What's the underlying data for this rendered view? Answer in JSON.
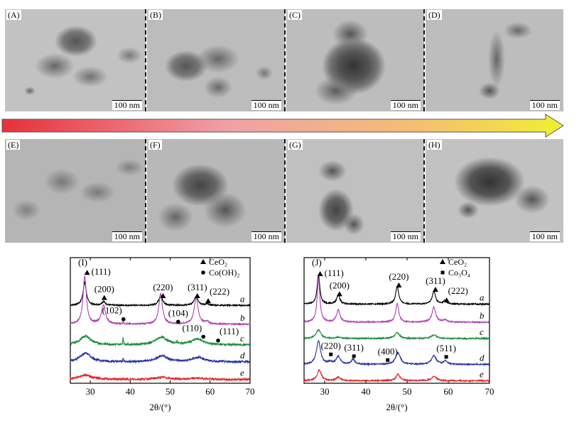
{
  "tem_panels_top": [
    {
      "label": "(A)",
      "scale": "100 nm"
    },
    {
      "label": "(B)",
      "scale": "100 nm"
    },
    {
      "label": "(C)",
      "scale": "100 nm"
    },
    {
      "label": "(D)",
      "scale": "100 nm"
    }
  ],
  "tem_panels_bottom": [
    {
      "label": "(E)",
      "scale": "100 nm"
    },
    {
      "label": "(F)",
      "scale": "100 nm"
    },
    {
      "label": "(G)",
      "scale": "100 nm"
    },
    {
      "label": "(H)",
      "scale": "100 nm"
    }
  ],
  "arrow_colors": [
    "#e8303a",
    "#f0a0a8",
    "#f5c070",
    "#f0f030"
  ],
  "chart_data": [
    {
      "type": "line",
      "panel_label": "(I)",
      "xlabel": "2θ/(°)",
      "xlim": [
        25,
        70
      ],
      "ylim": [
        0,
        100
      ],
      "xticks": [
        30,
        40,
        50,
        60,
        70
      ],
      "legend": [
        {
          "marker": "triangle",
          "text": "CeO₂"
        },
        {
          "marker": "circle",
          "text": "Co(OH)₂"
        }
      ],
      "legend_position": "top-right",
      "series": [
        {
          "name": "a",
          "color": "#000000",
          "baseline": 62,
          "peaks": [
            [
              28.6,
              18,
              0.5
            ],
            [
              33.3,
              3,
              0.5
            ],
            [
              47.6,
              8,
              0.55
            ],
            [
              56.5,
              7,
              0.6
            ],
            [
              59.2,
              1,
              0.5
            ]
          ]
        },
        {
          "name": "b",
          "color": "#b040b0",
          "baseline": 47,
          "peaks": [
            [
              28.6,
              38,
              0.5
            ],
            [
              33.3,
              15,
              0.6
            ],
            [
              38.2,
              2,
              0.1
            ],
            [
              47.6,
              24,
              0.55
            ],
            [
              56.5,
              21,
              0.6
            ],
            [
              59.2,
              2,
              0.5
            ]
          ]
        },
        {
          "name": "c",
          "color": "#1a8a3a",
          "baseline": 30.5,
          "peaks": [
            [
              28.8,
              7,
              1.6
            ],
            [
              38.2,
              5,
              0.1
            ],
            [
              47.8,
              6,
              1.8
            ],
            [
              51.7,
              2,
              0.1
            ],
            [
              56.8,
              4.5,
              1.8
            ]
          ]
        },
        {
          "name": "d",
          "color": "#2030a0",
          "baseline": 17,
          "peaks": [
            [
              28.8,
              7,
              1.6
            ],
            [
              38.2,
              2,
              0.1
            ],
            [
              48,
              4.5,
              1.8
            ],
            [
              57,
              3.5,
              1.8
            ]
          ]
        },
        {
          "name": "e",
          "color": "#e82020",
          "baseline": 3,
          "peaks": [
            [
              28.7,
              3.5,
              2
            ],
            [
              48,
              1.7,
              2
            ],
            [
              57,
              1,
              2
            ]
          ]
        }
      ],
      "annotations": [
        {
          "marker": "triangle",
          "x": 29.2,
          "y": 88,
          "text": "(111)",
          "place": "right"
        },
        {
          "marker": "triangle",
          "x": 33.5,
          "y": 68,
          "text": "(200)",
          "place": "above"
        },
        {
          "marker": "triangle",
          "x": 48.2,
          "y": 69.5,
          "text": "(220)",
          "place": "above"
        },
        {
          "marker": "triangle",
          "x": 56.8,
          "y": 69.5,
          "text": "(311)",
          "place": "above"
        },
        {
          "marker": "triangle",
          "x": 59.5,
          "y": 65.5,
          "text": "(222)",
          "place": "above-right"
        },
        {
          "marker": "circle",
          "x": 38.3,
          "y": 51,
          "text": "(102)",
          "place": "above-left"
        },
        {
          "marker": "circle",
          "x": 52,
          "y": 49,
          "text": "(104)",
          "place": "above"
        },
        {
          "marker": "circle",
          "x": 58.3,
          "y": 37,
          "text": "(110)",
          "place": "above-left"
        },
        {
          "marker": "circle",
          "x": 62,
          "y": 34,
          "text": "(111)",
          "place": "above-right"
        }
      ]
    },
    {
      "type": "line",
      "panel_label": "(J)",
      "xlabel": "2θ/(°)",
      "xlim": [
        25,
        70
      ],
      "ylim": [
        0,
        100
      ],
      "xticks": [
        30,
        40,
        50,
        60,
        70
      ],
      "legend": [
        {
          "marker": "triangle",
          "text": "CeO₂"
        },
        {
          "marker": "square",
          "text": "Co₃O₄"
        }
      ],
      "legend_position": "top-right",
      "series": [
        {
          "name": "a",
          "color": "#000000",
          "baseline": 63,
          "peaks": [
            [
              28.5,
              22.6,
              0.4
            ],
            [
              33.3,
              7.3,
              0.45
            ],
            [
              47.6,
              14,
              0.45
            ],
            [
              56.5,
              10,
              0.5
            ],
            [
              59.2,
              2.8,
              0.45
            ]
          ]
        },
        {
          "name": "b",
          "color": "#b040b0",
          "baseline": 48.6,
          "peaks": [
            [
              28.5,
              34.5,
              0.4
            ],
            [
              33.3,
              9.6,
              0.5
            ],
            [
              47.6,
              15,
              0.45
            ],
            [
              56.5,
              12,
              0.55
            ],
            [
              59.2,
              1.7,
              0.5
            ]
          ]
        },
        {
          "name": "c",
          "color": "#1a8a3a",
          "baseline": 35.6,
          "peaks": [
            [
              28.5,
              6.8,
              0.7
            ],
            [
              33.3,
              1.1,
              0.7
            ],
            [
              47.6,
              4.5,
              0.7
            ],
            [
              56.5,
              2.8,
              0.8
            ]
          ]
        },
        {
          "name": "d",
          "color": "#2030a0",
          "baseline": 15,
          "peaks": [
            [
              28.5,
              18.6,
              0.6
            ],
            [
              31.3,
              1.7,
              0.5
            ],
            [
              33.3,
              6.2,
              0.6
            ],
            [
              36.9,
              4,
              0.5
            ],
            [
              47.8,
              9,
              0.7
            ],
            [
              56.5,
              6.8,
              0.7
            ],
            [
              59.3,
              2.8,
              0.5
            ]
          ]
        },
        {
          "name": "e",
          "color": "#e82020",
          "baseline": 2,
          "peaks": [
            [
              28.7,
              8.5,
              0.6
            ],
            [
              33.3,
              2.8,
              0.6
            ],
            [
              47.8,
              5,
              0.6
            ],
            [
              56.6,
              3.4,
              0.7
            ]
          ]
        }
      ],
      "annotations": [
        {
          "marker": "triangle",
          "x": 28.9,
          "y": 87,
          "text": "(111)",
          "place": "right"
        },
        {
          "marker": "triangle",
          "x": 33.6,
          "y": 71,
          "text": "(200)",
          "place": "above"
        },
        {
          "marker": "triangle",
          "x": 48,
          "y": 78,
          "text": "(220)",
          "place": "above"
        },
        {
          "marker": "triangle",
          "x": 56.9,
          "y": 74.5,
          "text": "(311)",
          "place": "above"
        },
        {
          "marker": "triangle",
          "x": 59.6,
          "y": 66,
          "text": "(222)",
          "place": "above-right"
        },
        {
          "marker": "square",
          "x": 31.5,
          "y": 23,
          "text": "(220)",
          "place": "above"
        },
        {
          "marker": "square",
          "x": 37.1,
          "y": 21.5,
          "text": "(311)",
          "place": "above"
        },
        {
          "marker": "square",
          "x": 45.3,
          "y": 18.5,
          "text": "(400)",
          "place": "above"
        },
        {
          "marker": "square",
          "x": 59.5,
          "y": 21,
          "text": "(511)",
          "place": "above"
        }
      ]
    }
  ]
}
